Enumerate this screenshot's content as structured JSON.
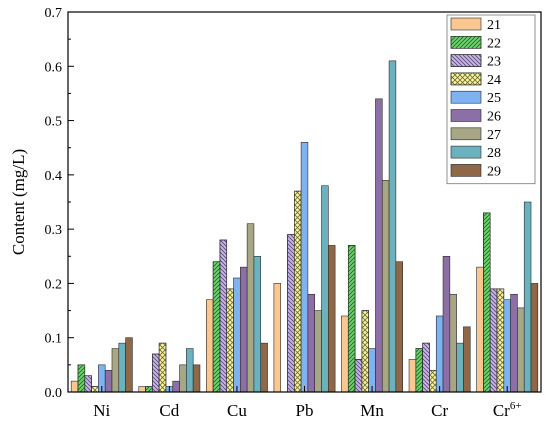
{
  "chart_data": {
    "type": "bar",
    "ylabel": "Content (mg/L)",
    "ylim": [
      0,
      0.7
    ],
    "yticks": [
      "0.0",
      "0.1",
      "0.2",
      "0.3",
      "0.4",
      "0.5",
      "0.6",
      "0.7"
    ],
    "categories": [
      {
        "label": "Ni",
        "sup": ""
      },
      {
        "label": "Cd",
        "sup": ""
      },
      {
        "label": "Cu",
        "sup": ""
      },
      {
        "label": "Pb",
        "sup": ""
      },
      {
        "label": "Mn",
        "sup": ""
      },
      {
        "label": "Cr",
        "sup": ""
      },
      {
        "label": "Cr",
        "sup": "6+"
      }
    ],
    "legend_position": "top-right",
    "grid": false,
    "series": [
      {
        "name": "21",
        "color": "#f9c78f",
        "pattern": "none",
        "values": [
          0.02,
          0.01,
          0.17,
          0.2,
          0.14,
          0.06,
          0.23
        ]
      },
      {
        "name": "22",
        "color": "#6fd36f",
        "pattern": "diag-right",
        "values": [
          0.05,
          0.01,
          0.24,
          0.0,
          0.27,
          0.08,
          0.33
        ]
      },
      {
        "name": "23",
        "color": "#c7b6e6",
        "pattern": "diag-left",
        "values": [
          0.03,
          0.07,
          0.28,
          0.29,
          0.06,
          0.09,
          0.19
        ]
      },
      {
        "name": "24",
        "color": "#fbf5a6",
        "pattern": "cross",
        "values": [
          0.01,
          0.09,
          0.19,
          0.37,
          0.15,
          0.04,
          0.19
        ]
      },
      {
        "name": "25",
        "color": "#7fb2f0",
        "pattern": "none",
        "values": [
          0.05,
          0.01,
          0.21,
          0.46,
          0.08,
          0.14,
          0.17
        ]
      },
      {
        "name": "26",
        "color": "#8c6fa6",
        "pattern": "none",
        "values": [
          0.04,
          0.02,
          0.23,
          0.18,
          0.54,
          0.25,
          0.18
        ]
      },
      {
        "name": "27",
        "color": "#a7a685",
        "pattern": "none",
        "values": [
          0.08,
          0.05,
          0.31,
          0.15,
          0.39,
          0.18,
          0.155
        ]
      },
      {
        "name": "28",
        "color": "#6bb2bf",
        "pattern": "none",
        "values": [
          0.09,
          0.08,
          0.25,
          0.38,
          0.61,
          0.09,
          0.35
        ]
      },
      {
        "name": "29",
        "color": "#8f6848",
        "pattern": "none",
        "values": [
          0.1,
          0.05,
          0.09,
          0.27,
          0.24,
          0.12,
          0.2
        ]
      }
    ]
  }
}
